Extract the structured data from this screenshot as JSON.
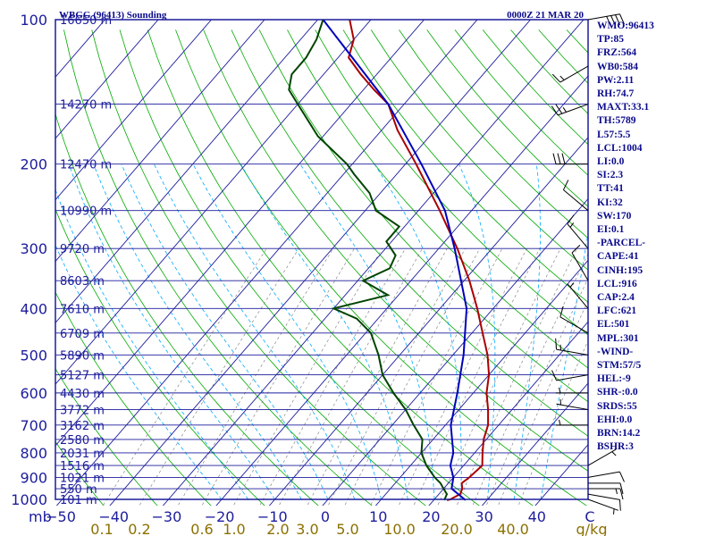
{
  "header": {
    "station_title": "WBGG (96413) Sounding",
    "valid_time": "0000Z 21 MAR 20"
  },
  "indices": [
    "WMO:96413",
    "TP:85",
    "FRZ:564",
    "WB0:584",
    "PW:2.11",
    "RH:74.7",
    "MAXT:33.1",
    "TH:5789",
    "L57:5.5",
    "LCL:1004",
    "LI:0.0",
    "SI:2.3",
    "TT:41",
    "KI:32",
    "SW:170",
    "EI:0.1",
    "-PARCEL-",
    "CAPE:41",
    "CINH:195",
    "LCL:916",
    "CAP:2.4",
    "LFC:621",
    "EL:501",
    "MPL:301",
    "-WIND-",
    "STM:57/5",
    "HEL:-9",
    "SHR-:0.0",
    "SRDS:55",
    "EHI:0.0",
    "BRN:14.2",
    "BSHR:3"
  ],
  "chart_data": {
    "type": "skew-t",
    "y_axis": {
      "unit_label": "mb",
      "scale": "log-pressure",
      "range": [
        1000,
        100
      ],
      "ticks": [
        100,
        200,
        300,
        400,
        500,
        600,
        700,
        800,
        900,
        1000
      ]
    },
    "x_axis": {
      "temperature_ticks": [
        -50,
        -40,
        -30,
        -20,
        -10,
        0,
        10,
        20,
        30,
        40,
        "C"
      ],
      "mixing_ratio_ticks": [
        "0.1",
        "0.2",
        "0.6",
        "1.0",
        "2.0",
        "3.0",
        "5.0",
        "10.0",
        "20.0",
        "40.0",
        "g/kg"
      ]
    },
    "height_labels": [
      {
        "p": 100,
        "label": "16650 m"
      },
      {
        "p": 150,
        "label": "14270 m"
      },
      {
        "p": 200,
        "label": "12470 m"
      },
      {
        "p": 250,
        "label": "10990 m"
      },
      {
        "p": 300,
        "label": "9720 m"
      },
      {
        "p": 350,
        "label": "8603 m"
      },
      {
        "p": 400,
        "label": "7610 m"
      },
      {
        "p": 450,
        "label": "6709 m"
      },
      {
        "p": 500,
        "label": "5890 m"
      },
      {
        "p": 550,
        "label": "5127 m"
      },
      {
        "p": 600,
        "label": "4430 m"
      },
      {
        "p": 650,
        "label": "3772 m"
      },
      {
        "p": 700,
        "label": "3162 m"
      },
      {
        "p": 750,
        "label": "2580 m"
      },
      {
        "p": 800,
        "label": "2031 m"
      },
      {
        "p": 850,
        "label": "1516 m"
      },
      {
        "p": 900,
        "label": "1021 m"
      },
      {
        "p": 950,
        "label": "550 m"
      },
      {
        "p": 1000,
        "label": "101 m"
      }
    ],
    "series": [
      {
        "name": "Temperature",
        "color": "#aa0000",
        "points": [
          [
            1004,
            22.5
          ],
          [
            1000,
            23
          ],
          [
            975,
            24
          ],
          [
            950,
            23.5
          ],
          [
            925,
            22.5
          ],
          [
            900,
            23
          ],
          [
            850,
            23.5
          ],
          [
            800,
            21.5
          ],
          [
            750,
            19.5
          ],
          [
            700,
            18
          ],
          [
            650,
            15.5
          ],
          [
            600,
            12.5
          ],
          [
            550,
            10
          ],
          [
            500,
            6.5
          ],
          [
            450,
            2
          ],
          [
            400,
            -3
          ],
          [
            350,
            -9
          ],
          [
            300,
            -16.5
          ],
          [
            250,
            -26
          ],
          [
            200,
            -38
          ],
          [
            170,
            -47
          ],
          [
            150,
            -53
          ],
          [
            140,
            -58
          ],
          [
            130,
            -63
          ],
          [
            120,
            -68
          ],
          [
            110,
            -70
          ],
          [
            100,
            -74
          ]
        ]
      },
      {
        "name": "Parcel",
        "color": "#0000bb",
        "points": [
          [
            1004,
            26
          ],
          [
            950,
            21.5
          ],
          [
            900,
            20
          ],
          [
            850,
            17.5
          ],
          [
            800,
            16
          ],
          [
            700,
            11
          ],
          [
            600,
            7
          ],
          [
            500,
            2
          ],
          [
            400,
            -5
          ],
          [
            300,
            -17
          ],
          [
            250,
            -25
          ],
          [
            200,
            -37
          ],
          [
            150,
            -53
          ],
          [
            100,
            -79
          ]
        ]
      },
      {
        "name": "Dewpoint",
        "color": "#004400",
        "points": [
          [
            1004,
            22
          ],
          [
            975,
            21.5
          ],
          [
            950,
            20
          ],
          [
            925,
            18.5
          ],
          [
            900,
            16.5
          ],
          [
            850,
            13
          ],
          [
            800,
            10
          ],
          [
            750,
            8
          ],
          [
            700,
            4
          ],
          [
            650,
            0
          ],
          [
            600,
            -5
          ],
          [
            550,
            -10
          ],
          [
            500,
            -14
          ],
          [
            450,
            -19
          ],
          [
            420,
            -24
          ],
          [
            400,
            -30
          ],
          [
            375,
            -22
          ],
          [
            350,
            -29
          ],
          [
            330,
            -26
          ],
          [
            310,
            -27
          ],
          [
            290,
            -31
          ],
          [
            270,
            -31
          ],
          [
            250,
            -38
          ],
          [
            230,
            -42
          ],
          [
            210,
            -48
          ],
          [
            200,
            -51
          ],
          [
            175,
            -61
          ],
          [
            150,
            -70
          ],
          [
            140,
            -74
          ],
          [
            130,
            -76
          ],
          [
            120,
            -76
          ],
          [
            110,
            -77
          ],
          [
            100,
            -79
          ]
        ]
      }
    ],
    "wind_barbs": [
      {
        "p": 1000,
        "dir": 110,
        "spd": 5
      },
      {
        "p": 975,
        "dir": 100,
        "spd": 10
      },
      {
        "p": 950,
        "dir": 90,
        "spd": 15
      },
      {
        "p": 925,
        "dir": 90,
        "spd": 10
      },
      {
        "p": 900,
        "dir": 80,
        "spd": 10
      },
      {
        "p": 850,
        "dir": 60,
        "spd": 5
      },
      {
        "p": 700,
        "dir": 270,
        "spd": 5
      },
      {
        "p": 650,
        "dir": 280,
        "spd": 5
      },
      {
        "p": 600,
        "dir": 270,
        "spd": 5
      },
      {
        "p": 550,
        "dir": 260,
        "spd": 10
      },
      {
        "p": 500,
        "dir": 280,
        "spd": 15
      },
      {
        "p": 450,
        "dir": 300,
        "spd": 10
      },
      {
        "p": 400,
        "dir": 320,
        "spd": 5
      },
      {
        "p": 350,
        "dir": 330,
        "spd": 10
      },
      {
        "p": 300,
        "dir": 320,
        "spd": 15
      },
      {
        "p": 250,
        "dir": 310,
        "spd": 10
      },
      {
        "p": 200,
        "dir": 270,
        "spd": 30
      },
      {
        "p": 150,
        "dir": 250,
        "spd": 25
      },
      {
        "p": 125,
        "dir": 240,
        "spd": 15
      },
      {
        "p": 100,
        "dir": 80,
        "spd": 40
      }
    ],
    "colors": {
      "frame": "#1c1c9c",
      "isobars": "#1c1c9c",
      "isotherms": "#1c1c9c",
      "dry_adiabats": "#00aa00",
      "moist_adiabats": "#00aaff",
      "mixing_ratio_lines": "#888888",
      "axis_labels": "#1c1c9c",
      "mixing_ratio_labels": "#8b7000"
    }
  }
}
